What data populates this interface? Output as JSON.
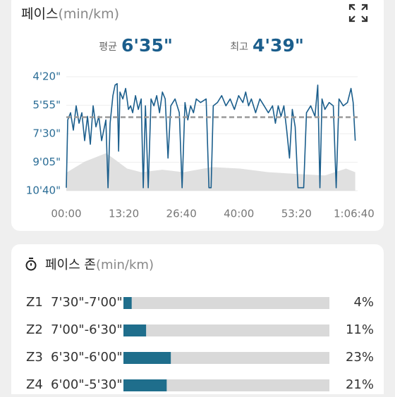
{
  "header": {
    "title": "페이스",
    "unit": "(min/km)"
  },
  "stats": [
    {
      "label": "평균",
      "value": 395,
      "value_label": "6'35\""
    },
    {
      "label": "최고",
      "value": 279,
      "value_label": "4'39\""
    }
  ],
  "chart_data": {
    "type": "line",
    "x": [
      0,
      20,
      59,
      98,
      137,
      177,
      216,
      255,
      295,
      334,
      373,
      412,
      452,
      491,
      550,
      580,
      609,
      648,
      678,
      707,
      727,
      746,
      786,
      825,
      864,
      894,
      923,
      962,
      1001,
      1041,
      1070,
      1100,
      1139,
      1178,
      1218,
      1257,
      1296,
      1336,
      1375,
      1414,
      1453,
      1512,
      1571,
      1610,
      1650,
      1689,
      1728,
      1768,
      1807,
      1866,
      1944,
      1983,
      2013,
      2043,
      2101,
      2160,
      2219,
      2278,
      2337,
      2396,
      2455,
      2494,
      2534,
      2573,
      2632,
      2691,
      2750,
      2809,
      2867,
      2907,
      2946,
      2985,
      3025,
      3064,
      3103,
      3142,
      3182,
      3221,
      3300,
      3339,
      3398,
      3457,
      3496,
      3526,
      3555,
      3595,
      3654,
      3712,
      3752,
      3791,
      3850,
      3909,
      3958,
      3988,
      4017
    ],
    "series": [
      {
        "color": "#1b5e8c",
        "values": [
          630,
          404,
          380,
          438,
          357,
          415,
          380,
          473,
          392,
          485,
          357,
          427,
          392,
          473,
          404,
          630,
          415,
          323,
          288,
          283,
          508,
          311,
          334,
          299,
          369,
          357,
          380,
          323,
          369,
          334,
          630,
          357,
          630,
          334,
          357,
          323,
          380,
          311,
          334,
          531,
          357,
          334,
          380,
          630,
          346,
          404,
          357,
          380,
          334,
          346,
          334,
          630,
          630,
          357,
          346,
          323,
          357,
          334,
          369,
          323,
          346,
          311,
          357,
          334,
          380,
          334,
          357,
          380,
          357,
          415,
          357,
          392,
          357,
          438,
          531,
          369,
          427,
          630,
          630,
          380,
          357,
          392,
          288,
          630,
          334,
          369,
          346,
          357,
          630,
          334,
          357,
          346,
          299,
          346,
          473
        ]
      }
    ],
    "area": {
      "color": "#e0e0e0",
      "x": [
        0,
        255,
        550,
        648,
        845,
        1041,
        1336,
        1630,
        2023,
        2416,
        2809,
        3202,
        3595,
        3889,
        4017
      ],
      "values": [
        580,
        543,
        515,
        531,
        566,
        578,
        570,
        578,
        561,
        566,
        578,
        584,
        589,
        566,
        578
      ]
    },
    "average_color": "#999999",
    "xlim": [
      0,
      4050
    ],
    "xticks": [
      {
        "value": 0,
        "label": "00:00"
      },
      {
        "value": 800,
        "label": "13:20"
      },
      {
        "value": 1600,
        "label": "26:40"
      },
      {
        "value": 2400,
        "label": "40:00"
      },
      {
        "value": 3200,
        "label": "53:20"
      },
      {
        "value": 4000,
        "label": "1:06:40"
      }
    ],
    "ylim": [
      260,
      640
    ],
    "yticks": [
      {
        "value": 260,
        "label": "4'20\""
      },
      {
        "value": 355,
        "label": "5'55\""
      },
      {
        "value": 450,
        "label": "7'30\""
      },
      {
        "value": 545,
        "label": "9'05\""
      },
      {
        "value": 640,
        "label": "10'40\""
      }
    ],
    "y_inverted": true,
    "grid": true
  },
  "zones": {
    "title": "페이스 존",
    "unit": "(min/km)",
    "color": "#1f6e8c",
    "track_color": "#d9d9d9",
    "xlim": [
      0,
      100
    ],
    "rows": [
      {
        "zone": "Z1",
        "range": "7'30\"-7'00\"",
        "value": 4,
        "value_label": "4%"
      },
      {
        "zone": "Z2",
        "range": "7'00\"-6'30\"",
        "value": 11,
        "value_label": "11%"
      },
      {
        "zone": "Z3",
        "range": "6'30\"-6'00\"",
        "value": 23,
        "value_label": "23%"
      },
      {
        "zone": "Z4",
        "range": "6'00\"-5'30\"",
        "value": 21,
        "value_label": "21%"
      }
    ]
  }
}
